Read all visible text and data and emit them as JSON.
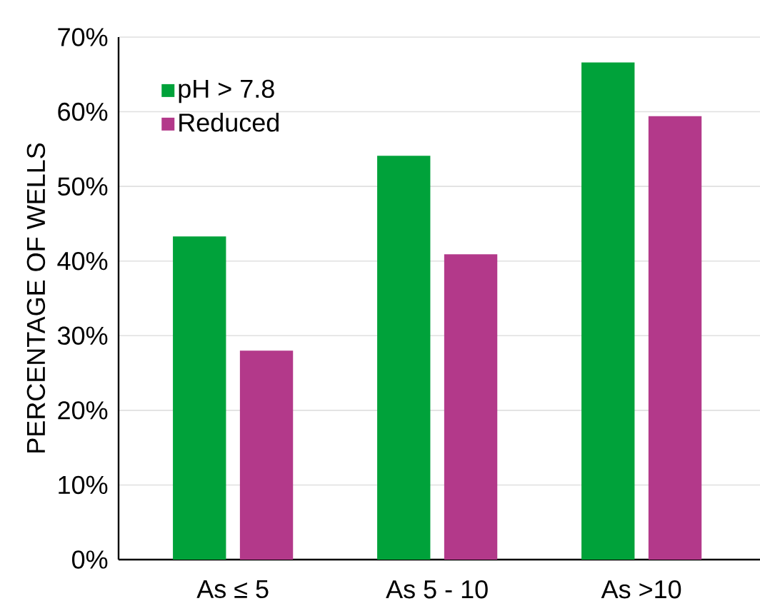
{
  "chart_data": {
    "type": "bar",
    "ylabel": "PERCENTAGE OF WELLS",
    "categories": [
      "As ≤ 5",
      "As 5 - 10",
      "As >10"
    ],
    "series": [
      {
        "name": "pH > 7.8",
        "color": "#00a23a",
        "values": [
          43.3,
          54.1,
          66.6
        ]
      },
      {
        "name": "Reduced",
        "color": "#b3398a",
        "values": [
          28.0,
          40.9,
          59.4
        ]
      }
    ],
    "ylim": [
      0,
      70
    ],
    "yticks": [
      {
        "value": 0,
        "label": "0%"
      },
      {
        "value": 10,
        "label": "10%"
      },
      {
        "value": 20,
        "label": "20%"
      },
      {
        "value": 30,
        "label": "30%"
      },
      {
        "value": 40,
        "label": "40%"
      },
      {
        "value": 50,
        "label": "50%"
      },
      {
        "value": 60,
        "label": "60%"
      },
      {
        "value": 70,
        "label": "70%"
      }
    ],
    "grid": "y",
    "legend": "top left"
  }
}
